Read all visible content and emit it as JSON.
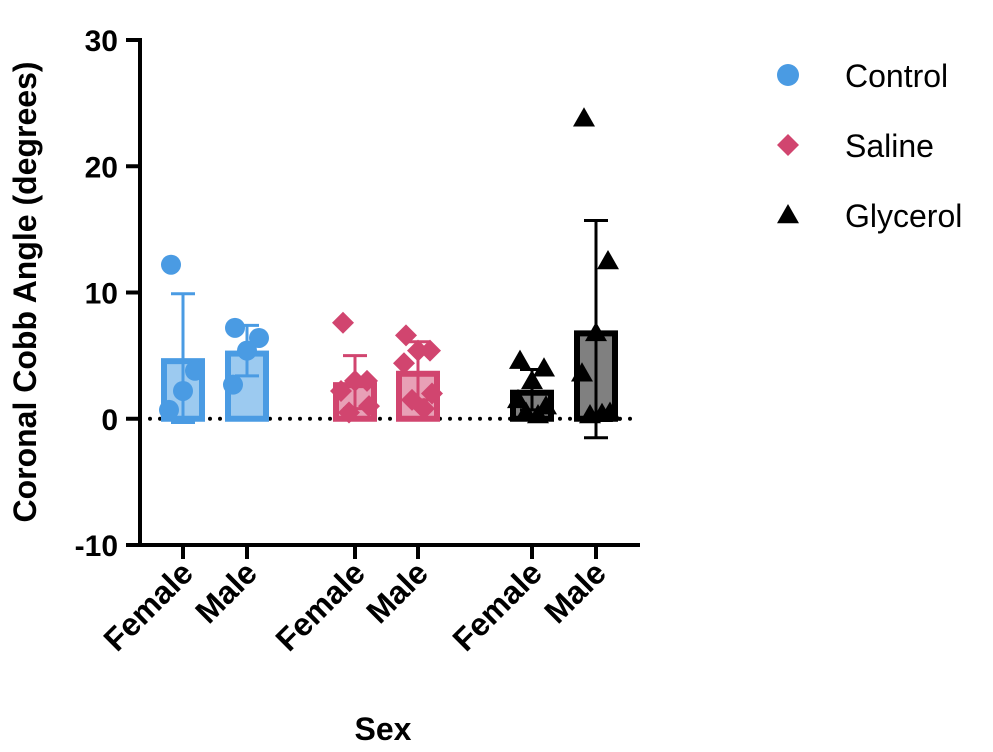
{
  "chart_data": {
    "type": "bar",
    "xlabel": "Sex",
    "ylabel": "Coronal Cobb Angle (degrees)",
    "ylim": [
      -10,
      30
    ],
    "yticks": [
      "-10",
      "0",
      "10",
      "20",
      "30"
    ],
    "reference_line": 0,
    "grid": false,
    "legend_position": "top-right",
    "series": [
      {
        "name": "Control",
        "marker": "circle",
        "color": "#4a9be3",
        "fill": "#9ccaf0",
        "groups": [
          {
            "category": "Female",
            "mean": 4.8,
            "err_high": 9.9,
            "err_low": -0.3,
            "points": [
              12.2,
              3.8,
              2.2,
              0.7
            ]
          },
          {
            "category": "Male",
            "mean": 5.4,
            "err_high": 7.4,
            "err_low": 3.4,
            "points": [
              7.2,
              6.4,
              5.4,
              2.7
            ]
          }
        ]
      },
      {
        "name": "Saline",
        "marker": "diamond",
        "color": "#d1456f",
        "fill": "#e8a0b6",
        "groups": [
          {
            "category": "Female",
            "mean": 2.9,
            "err_high": 5.0,
            "err_low": 0.8,
            "points": [
              7.6,
              3.0,
              3.0,
              2.2,
              1.0,
              0.5
            ]
          },
          {
            "category": "Male",
            "mean": 3.8,
            "err_high": 6.1,
            "err_low": 1.5,
            "points": [
              6.6,
              5.4,
              5.4,
              4.4,
              2.0,
              1.5,
              0.8
            ]
          }
        ]
      },
      {
        "name": "Glycerol",
        "marker": "triangle",
        "color": "#000000",
        "fill": "#808080",
        "groups": [
          {
            "category": "Female",
            "mean": 2.3,
            "err_high": 3.9,
            "err_low": 0.7,
            "points": [
              4.6,
              4.0,
              3.0,
              1.5,
              1.0,
              0.5,
              0.3
            ]
          },
          {
            "category": "Male",
            "mean": 7.0,
            "err_high": 15.7,
            "err_low": -1.5,
            "points": [
              23.8,
              12.5,
              6.8,
              3.6,
              0.5,
              0.3,
              0.4
            ]
          }
        ]
      }
    ]
  }
}
